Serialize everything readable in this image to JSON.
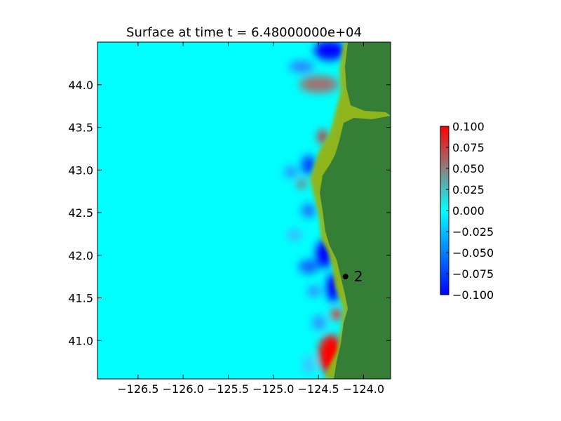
{
  "chart_data": {
    "type": "heatmap",
    "title": "Surface at time t = 6.48000000e+04",
    "xlabel": "",
    "ylabel": "",
    "xlim": [
      -126.95,
      -123.7
    ],
    "ylim": [
      40.55,
      44.5
    ],
    "x_ticks": [
      -126.5,
      -126.0,
      -125.5,
      -125.0,
      -124.5,
      -124.0
    ],
    "x_tick_labels": [
      "−126.5",
      "−126.0",
      "−125.5",
      "−125.0",
      "−124.5",
      "−124.0"
    ],
    "y_ticks": [
      41.0,
      41.5,
      42.0,
      42.5,
      43.0,
      43.5,
      44.0
    ],
    "y_tick_labels": [
      "41.0",
      "41.5",
      "42.0",
      "42.5",
      "43.0",
      "43.5",
      "44.0"
    ],
    "grid": false,
    "colorbar": {
      "range": [
        -0.1,
        0.1
      ],
      "ticks": [
        0.1,
        0.075,
        0.05,
        0.025,
        0.0,
        -0.025,
        -0.05,
        -0.075,
        -0.1
      ],
      "tick_labels": [
        "0.100",
        "0.075",
        "0.050",
        "0.025",
        "0.000",
        "−0.025",
        "−0.050",
        "−0.075",
        "−0.100"
      ],
      "colors": [
        "#0000ff",
        "#00ffff",
        "#ff0000"
      ]
    },
    "land_color": "#357e36",
    "shore_color": "#8fb51c",
    "ocean_color": "#00ffff",
    "gauges": [
      {
        "label": "2",
        "lon": -124.2,
        "lat": 41.75
      }
    ]
  }
}
